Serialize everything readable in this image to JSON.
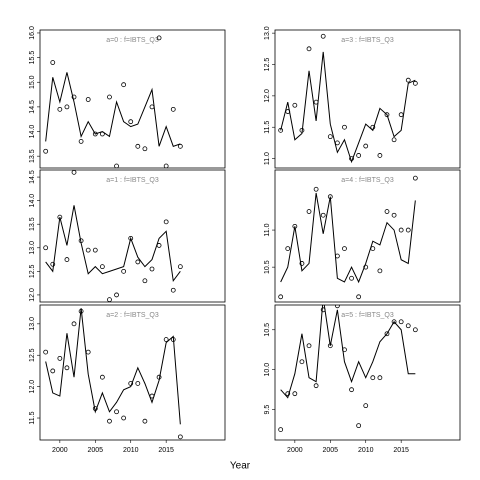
{
  "xlabel": "Year",
  "chart_data": [
    {
      "type": "line",
      "title": "a=0 : f=IBTS_Q3",
      "x": [
        1998,
        1999,
        2000,
        2001,
        2002,
        2003,
        2004,
        2005,
        2006,
        2007,
        2008,
        2009,
        2010,
        2011,
        2012,
        2013,
        2014,
        2015,
        2016,
        2017
      ],
      "series": [
        {
          "mark": "line",
          "color": "#000000",
          "values": [
            13.8,
            15.1,
            14.6,
            15.2,
            14.6,
            13.9,
            14.2,
            13.95,
            14.0,
            13.9,
            14.6,
            14.2,
            14.1,
            14.15,
            14.5,
            14.85,
            13.7,
            14.1,
            13.7,
            13.75
          ]
        },
        {
          "mark": "points",
          "color": "#000000",
          "values": [
            13.6,
            15.4,
            14.45,
            14.5,
            14.7,
            13.8,
            14.65,
            13.95,
            13.95,
            14.7,
            13.3,
            14.95,
            14.2,
            13.7,
            13.65,
            14.5,
            15.9,
            13.3,
            14.45,
            13.7
          ]
        }
      ],
      "xlim": [
        1997.2,
        2023.3
      ],
      "ylim": [
        13.26,
        16.06
      ],
      "yticks": [
        13.5,
        {
          "value": 14,
          "label": "14.0"
        },
        14.5,
        {
          "value": 15,
          "label": "15.0"
        },
        15.5,
        {
          "value": 16,
          "label": "16.0"
        }
      ]
    },
    {
      "type": "line",
      "title": "a=1 : f=IBTS_Q3",
      "x": [
        1998,
        1999,
        2000,
        2001,
        2002,
        2003,
        2004,
        2005,
        2006,
        2007,
        2008,
        2009,
        2010,
        2011,
        2012,
        2013,
        2014,
        2015,
        2016,
        2017
      ],
      "series": [
        {
          "mark": "line",
          "color": "#000000",
          "values": [
            12.7,
            12.5,
            13.65,
            13.05,
            13.9,
            13.1,
            12.45,
            12.6,
            12.45,
            12.5,
            12.55,
            12.6,
            13.2,
            12.8,
            12.6,
            12.75,
            13.2,
            13.35,
            12.3,
            12.5
          ]
        },
        {
          "mark": "points",
          "color": "#000000",
          "values": [
            13.0,
            12.65,
            13.65,
            12.75,
            14.6,
            13.15,
            12.95,
            12.95,
            12.6,
            11.9,
            12.0,
            12.5,
            13.2,
            12.7,
            12.3,
            12.55,
            13.05,
            13.55,
            12.1,
            12.6
          ]
        }
      ],
      "xlim": [
        1997.2,
        2023.3
      ],
      "ylim": [
        11.85,
        14.65
      ],
      "yticks": [
        {
          "value": 12,
          "label": "12.0"
        },
        12.5,
        {
          "value": 13,
          "label": "13.0"
        },
        13.5,
        {
          "value": 14,
          "label": "14.0"
        },
        14.5
      ]
    },
    {
      "type": "line",
      "title": "a=2 : f=IBTS_Q3",
      "x": [
        1998,
        1999,
        2000,
        2001,
        2002,
        2003,
        2004,
        2005,
        2006,
        2007,
        2008,
        2009,
        2010,
        2011,
        2012,
        2013,
        2014,
        2015,
        2016,
        2017
      ],
      "series": [
        {
          "mark": "line",
          "color": "#000000",
          "values": [
            12.4,
            11.9,
            11.85,
            12.85,
            12.15,
            13.25,
            12.2,
            11.6,
            11.9,
            11.6,
            11.75,
            11.95,
            12.0,
            12.3,
            12.05,
            11.75,
            12.1,
            12.7,
            12.8,
            11.4
          ]
        },
        {
          "mark": "points",
          "color": "#000000",
          "values": [
            12.55,
            12.25,
            12.45,
            12.3,
            13.0,
            13.2,
            12.55,
            11.65,
            12.15,
            11.45,
            11.6,
            11.5,
            12.05,
            12.05,
            11.45,
            11.85,
            12.15,
            12.75,
            12.75,
            11.2
          ]
        }
      ],
      "xlim": [
        1997.2,
        2023.3
      ],
      "ylim": [
        11.15,
        13.3
      ],
      "xticks": [
        2000,
        2005,
        2010,
        2015
      ],
      "yticks": [
        11.5,
        {
          "value": 12,
          "label": "12.0"
        },
        12.5,
        {
          "value": 13,
          "label": "13.0"
        }
      ]
    },
    {
      "type": "line",
      "title": "a=3 : f=IBTS_Q3",
      "x": [
        1998,
        1999,
        2000,
        2001,
        2002,
        2003,
        2004,
        2005,
        2006,
        2007,
        2008,
        2009,
        2010,
        2011,
        2012,
        2013,
        2014,
        2015,
        2016,
        2017
      ],
      "series": [
        {
          "mark": "line",
          "color": "#000000",
          "values": [
            11.45,
            11.9,
            11.3,
            11.4,
            12.4,
            11.6,
            12.7,
            11.55,
            11.1,
            11.3,
            10.95,
            11.25,
            11.55,
            11.45,
            11.8,
            11.7,
            11.35,
            11.45,
            12.2,
            12.25
          ]
        },
        {
          "mark": "points",
          "color": "#000000",
          "values": [
            11.45,
            11.75,
            11.85,
            11.45,
            12.75,
            11.9,
            12.95,
            11.35,
            11.25,
            11.5,
            11.0,
            11.05,
            11.2,
            11.5,
            11.05,
            11.7,
            11.3,
            11.7,
            12.25,
            12.2
          ]
        }
      ],
      "xlim": [
        1997.2,
        2023.3
      ],
      "ylim": [
        10.85,
        13.05
      ],
      "yticks": [
        {
          "value": 11,
          "label": "11.0"
        },
        11.5,
        {
          "value": 12,
          "label": "12.0"
        },
        12.5,
        {
          "value": 13,
          "label": "13.0"
        }
      ]
    },
    {
      "type": "line",
      "title": "a=4 : f=IBTS_Q3",
      "x": [
        1998,
        1999,
        2000,
        2001,
        2002,
        2003,
        2004,
        2005,
        2006,
        2007,
        2008,
        2009,
        2010,
        2011,
        2012,
        2013,
        2014,
        2015,
        2016,
        2017
      ],
      "series": [
        {
          "mark": "line",
          "color": "#000000",
          "values": [
            10.3,
            10.5,
            11.05,
            10.45,
            10.55,
            11.5,
            10.95,
            11.45,
            10.35,
            10.3,
            10.5,
            10.3,
            10.55,
            10.85,
            10.8,
            11.1,
            11.0,
            10.6,
            10.55,
            11.4
          ]
        },
        {
          "mark": "points",
          "color": "#000000",
          "values": [
            10.1,
            10.75,
            11.05,
            10.55,
            11.25,
            11.55,
            11.2,
            11.45,
            10.65,
            10.75,
            10.35,
            10.1,
            10.5,
            10.75,
            10.45,
            11.25,
            11.2,
            11.0,
            11.0,
            11.7
          ]
        }
      ],
      "xlim": [
        1997.2,
        2023.3
      ],
      "ylim": [
        10.03,
        11.81
      ],
      "yticks": [
        10.5,
        {
          "value": 11,
          "label": "11.0"
        }
      ]
    },
    {
      "type": "line",
      "title": "a=5 : f=IBTS_Q3",
      "x": [
        1998,
        1999,
        2000,
        2001,
        2002,
        2003,
        2004,
        2005,
        2006,
        2007,
        2008,
        2009,
        2010,
        2011,
        2012,
        2013,
        2014,
        2015,
        2016,
        2017
      ],
      "series": [
        {
          "mark": "line",
          "color": "#000000",
          "values": [
            9.75,
            9.65,
            9.95,
            10.45,
            9.9,
            9.85,
            10.9,
            10.3,
            10.75,
            10.1,
            9.85,
            10.1,
            9.9,
            10.1,
            10.35,
            10.45,
            10.6,
            10.5,
            9.95,
            9.95
          ]
        },
        {
          "mark": "points",
          "color": "#000000",
          "values": [
            9.25,
            9.7,
            9.7,
            10.1,
            10.3,
            9.8,
            10.75,
            10.3,
            10.8,
            10.25,
            9.75,
            9.3,
            9.55,
            9.9,
            9.9,
            10.45,
            10.6,
            10.6,
            10.55,
            10.5
          ]
        }
      ],
      "xlim": [
        1997.2,
        2023.3
      ],
      "ylim": [
        9.12,
        10.81
      ],
      "xticks": [
        2000,
        2005,
        2010,
        2015
      ],
      "yticks": [
        9.5,
        {
          "value": 10,
          "label": "10.0"
        },
        10.5
      ]
    }
  ]
}
